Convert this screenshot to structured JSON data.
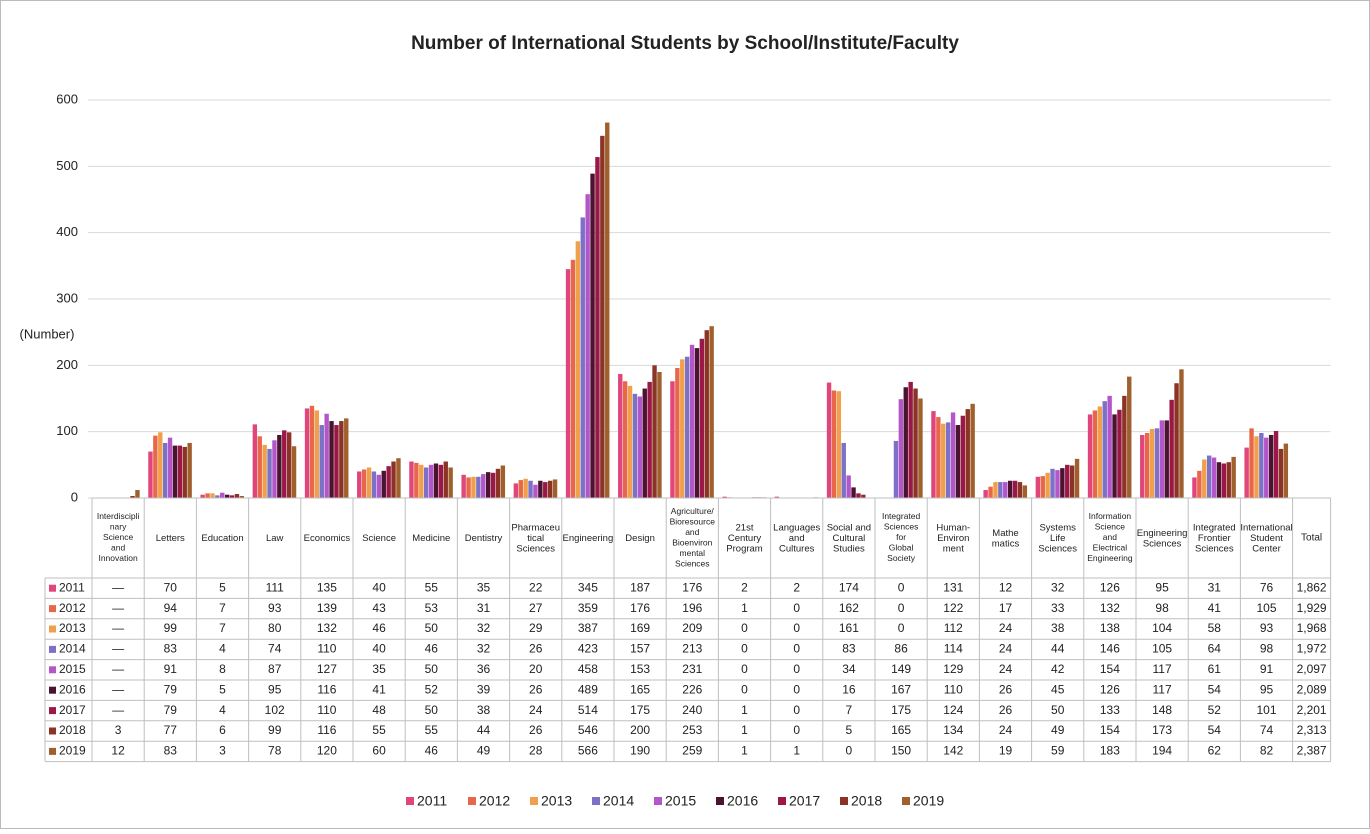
{
  "chart_data": {
    "type": "bar",
    "title": "Number of International Students by School/Institute/Faculty",
    "y_label": "(Number)",
    "categories": [
      "Interdiscipli\nnary\nScience\nand\nInnovation",
      "Letters",
      "Education",
      "Law",
      "Economics",
      "Science",
      "Medicine",
      "Dentistry",
      "Pharmaceu\ntical\nSciences",
      "Engineering",
      "Design",
      "Agriculture/\nBioresource\nand\nBioenviron\nmental\nSciences",
      "21st\nCentury\nProgram",
      "Languages\nand\nCultures",
      "Social and\nCultural\nStudies",
      "Integrated\nSciences\nfor\nGlobal\nSociety",
      "Human-\nEnviron\nment",
      "Mathe\nmatics",
      "Systems\nLife\nSciences",
      "Information\nScience\nand\nElectrical\nEngineering",
      "Engineering\nSciences",
      "Integrated\nFrontier\nSciences",
      "International\nStudent\nCenter"
    ],
    "missing_label": "—",
    "total_label": "Total",
    "series": [
      {
        "name": "2011",
        "color": "#e0457b",
        "values": [
          null,
          70,
          5,
          111,
          135,
          40,
          55,
          35,
          22,
          345,
          187,
          176,
          2,
          2,
          174,
          0,
          131,
          12,
          32,
          126,
          95,
          31,
          76
        ]
      },
      {
        "name": "2012",
        "color": "#e8674a",
        "values": [
          null,
          94,
          7,
          93,
          139,
          43,
          53,
          31,
          27,
          359,
          176,
          196,
          1,
          0,
          162,
          0,
          122,
          17,
          33,
          132,
          98,
          41,
          105
        ]
      },
      {
        "name": "2013",
        "color": "#f0a04b",
        "values": [
          null,
          99,
          7,
          80,
          132,
          46,
          50,
          32,
          29,
          387,
          169,
          209,
          0,
          0,
          161,
          0,
          112,
          24,
          38,
          138,
          104,
          58,
          93
        ]
      },
      {
        "name": "2014",
        "color": "#7b72c8",
        "values": [
          null,
          83,
          4,
          74,
          110,
          40,
          46,
          32,
          26,
          423,
          157,
          213,
          0,
          0,
          83,
          86,
          114,
          24,
          44,
          146,
          105,
          64,
          98
        ]
      },
      {
        "name": "2015",
        "color": "#b356c9",
        "values": [
          null,
          91,
          8,
          87,
          127,
          35,
          50,
          36,
          20,
          458,
          153,
          231,
          0,
          0,
          34,
          149,
          129,
          24,
          42,
          154,
          117,
          61,
          91
        ]
      },
      {
        "name": "2016",
        "color": "#4a1430",
        "values": [
          null,
          79,
          5,
          95,
          116,
          41,
          52,
          39,
          26,
          489,
          165,
          226,
          0,
          0,
          16,
          167,
          110,
          26,
          45,
          126,
          117,
          54,
          95
        ]
      },
      {
        "name": "2017",
        "color": "#9b1747",
        "values": [
          null,
          79,
          4,
          102,
          110,
          48,
          50,
          38,
          24,
          514,
          175,
          240,
          1,
          0,
          7,
          175,
          124,
          26,
          50,
          133,
          148,
          52,
          101
        ]
      },
      {
        "name": "2018",
        "color": "#8b3426",
        "values": [
          3,
          77,
          6,
          99,
          116,
          55,
          55,
          44,
          26,
          546,
          200,
          253,
          1,
          0,
          5,
          165,
          134,
          24,
          49,
          154,
          173,
          54,
          74
        ]
      },
      {
        "name": "2019",
        "color": "#a0602e",
        "values": [
          12,
          83,
          3,
          78,
          120,
          60,
          46,
          49,
          28,
          566,
          190,
          259,
          1,
          1,
          0,
          150,
          142,
          19,
          59,
          183,
          194,
          62,
          82
        ]
      }
    ],
    "totals": [
      {
        "value": 1862,
        "label": "1,862"
      },
      {
        "value": 1929,
        "label": "1,929"
      },
      {
        "value": 1968,
        "label": "1,968"
      },
      {
        "value": 1972,
        "label": "1,972"
      },
      {
        "value": 2097,
        "label": "2,097"
      },
      {
        "value": 2089,
        "label": "2,089"
      },
      {
        "value": 2201,
        "label": "2,201"
      },
      {
        "value": 2313,
        "label": "2,313"
      },
      {
        "value": 2387,
        "label": "2,387"
      }
    ],
    "ylim": [
      0,
      600
    ],
    "yticks": [
      0,
      100,
      200,
      300,
      400,
      500,
      600
    ],
    "grid": true,
    "legend": "bottom"
  }
}
